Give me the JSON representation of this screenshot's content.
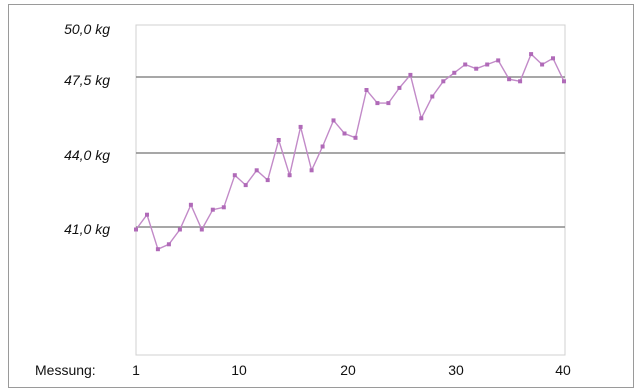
{
  "chart_data": {
    "type": "line",
    "title": "",
    "xlabel": "Messung:",
    "ylabel": "",
    "x_ticks": [
      "1",
      "10",
      "20",
      "30",
      "40"
    ],
    "y_ticks": [
      "50,0 kg",
      "47,5 kg",
      "44,0 kg",
      "41,0 kg"
    ],
    "y_gridlines": [
      47.5,
      44.0,
      41.0
    ],
    "xlim": [
      1,
      40
    ],
    "series": [
      {
        "color": "#c28ac8",
        "x": [
          1,
          2,
          3,
          4,
          5,
          6,
          7,
          8,
          9,
          10,
          11,
          12,
          13,
          14,
          15,
          16,
          17,
          18,
          19,
          20,
          21,
          22,
          23,
          24,
          25,
          26,
          27,
          28,
          29,
          30,
          31,
          32,
          33,
          34,
          35,
          36,
          37,
          38,
          39,
          40
        ],
        "values": [
          40.9,
          41.5,
          40.1,
          40.3,
          40.9,
          41.9,
          40.9,
          41.7,
          41.8,
          43.1,
          42.7,
          43.3,
          42.9,
          44.6,
          43.1,
          45.2,
          43.3,
          44.3,
          45.5,
          44.9,
          44.7,
          46.9,
          46.3,
          46.3,
          47.0,
          47.6,
          45.6,
          46.6,
          47.3,
          47.7,
          48.1,
          47.9,
          48.1,
          48.3,
          47.4,
          47.3,
          48.6,
          48.1,
          48.4,
          47.3
        ]
      }
    ],
    "grid": true
  }
}
